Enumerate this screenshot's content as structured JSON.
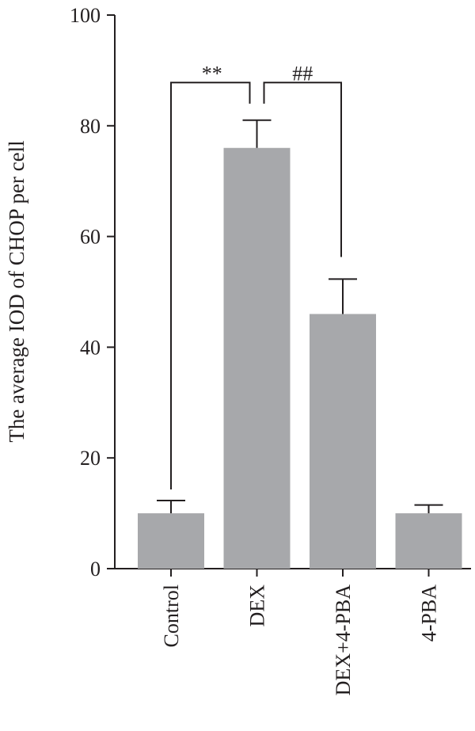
{
  "chart_data": {
    "type": "bar",
    "categories": [
      "Control",
      "DEX",
      "DEX+4-PBA",
      "4-PBA"
    ],
    "values": [
      10,
      76,
      46,
      10
    ],
    "errors": [
      2.3,
      5,
      6.3,
      1.5
    ],
    "title": "",
    "xlabel": "",
    "ylabel": "The average IOD of CHOP per cell",
    "ylim": [
      0,
      100
    ],
    "yticks": [
      0,
      20,
      40,
      60,
      80,
      100
    ],
    "grid": false,
    "bar_color": "#a7a8ab",
    "significance": [
      {
        "from": 0,
        "to": 1,
        "label": "**"
      },
      {
        "from": 1,
        "to": 2,
        "label": "##"
      }
    ]
  }
}
